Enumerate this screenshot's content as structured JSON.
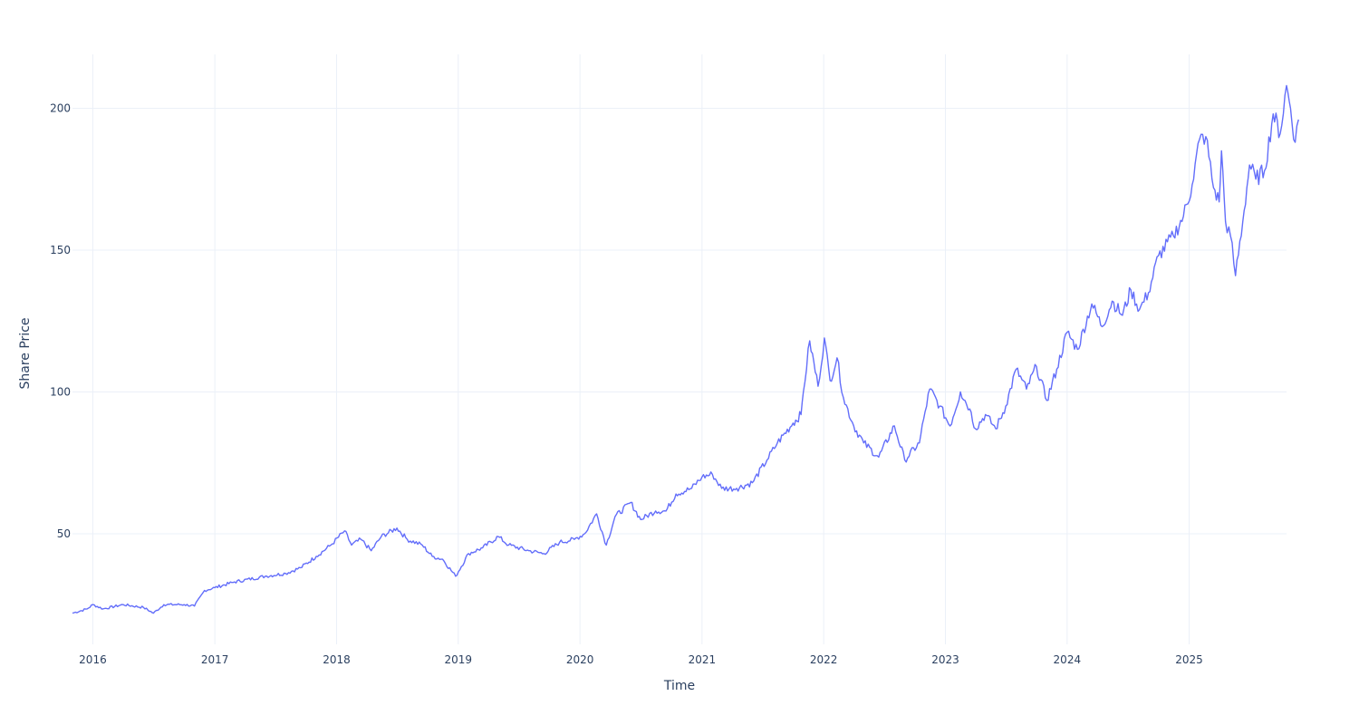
{
  "chart_data": {
    "type": "line",
    "title": "",
    "xlabel": "Time",
    "ylabel": "Share Price",
    "x_range": [
      "2015-11-01",
      "2025-10-20"
    ],
    "ylim": [
      11,
      219
    ],
    "x_ticks": [
      "2016",
      "2017",
      "2018",
      "2019",
      "2020",
      "2021",
      "2022",
      "2023",
      "2024",
      "2025"
    ],
    "y_ticks": [
      "50",
      "100",
      "150",
      "200"
    ],
    "y_tick_values": [
      50,
      100,
      150,
      200
    ],
    "grid": true,
    "legend": "none",
    "series": [
      {
        "color": "#636efa",
        "points": [
          [
            "2015-11-01",
            22
          ],
          [
            "2015-12-15",
            23.5
          ],
          [
            "2016-01-01",
            25
          ],
          [
            "2016-02-01",
            23.5
          ],
          [
            "2016-04-01",
            25
          ],
          [
            "2016-06-01",
            24
          ],
          [
            "2016-07-01",
            22
          ],
          [
            "2016-08-01",
            25
          ],
          [
            "2016-10-01",
            25
          ],
          [
            "2016-11-01",
            24.5
          ],
          [
            "2016-12-01",
            30
          ],
          [
            "2017-01-01",
            31
          ],
          [
            "2017-03-01",
            33
          ],
          [
            "2017-06-01",
            35
          ],
          [
            "2017-08-01",
            36
          ],
          [
            "2017-09-15",
            38
          ],
          [
            "2017-11-01",
            42
          ],
          [
            "2017-12-15",
            46
          ],
          [
            "2018-01-25",
            51
          ],
          [
            "2018-02-15",
            46
          ],
          [
            "2018-03-15",
            48
          ],
          [
            "2018-04-15",
            44
          ],
          [
            "2018-05-15",
            49
          ],
          [
            "2018-07-01",
            52
          ],
          [
            "2018-08-01",
            48
          ],
          [
            "2018-09-15",
            46
          ],
          [
            "2018-10-15",
            42
          ],
          [
            "2018-11-15",
            41
          ],
          [
            "2018-12-24",
            35
          ],
          [
            "2019-02-01",
            43
          ],
          [
            "2019-03-15",
            45
          ],
          [
            "2019-05-01",
            49
          ],
          [
            "2019-06-01",
            46
          ],
          [
            "2019-08-01",
            44
          ],
          [
            "2019-09-15",
            43
          ],
          [
            "2019-11-01",
            47
          ],
          [
            "2019-12-15",
            48
          ],
          [
            "2020-01-15",
            50
          ],
          [
            "2020-02-20",
            57
          ],
          [
            "2020-03-20",
            46
          ],
          [
            "2020-04-15",
            56
          ],
          [
            "2020-06-01",
            61
          ],
          [
            "2020-07-01",
            55
          ],
          [
            "2020-08-15",
            58
          ],
          [
            "2020-09-15",
            58
          ],
          [
            "2020-10-15",
            64
          ],
          [
            "2020-12-01",
            66
          ],
          [
            "2021-01-01",
            70
          ],
          [
            "2021-02-01",
            71
          ],
          [
            "2021-03-01",
            66
          ],
          [
            "2021-04-15",
            66
          ],
          [
            "2021-06-01",
            68
          ],
          [
            "2021-07-15",
            76
          ],
          [
            "2021-08-15",
            82
          ],
          [
            "2021-10-01",
            89
          ],
          [
            "2021-10-25",
            92
          ],
          [
            "2021-11-01",
            100
          ],
          [
            "2021-11-20",
            118
          ],
          [
            "2021-12-15",
            102
          ],
          [
            "2022-01-03",
            119
          ],
          [
            "2022-01-20",
            104
          ],
          [
            "2022-02-10",
            112
          ],
          [
            "2022-03-01",
            98
          ],
          [
            "2022-04-01",
            88
          ],
          [
            "2022-05-01",
            82
          ],
          [
            "2022-06-15",
            77
          ],
          [
            "2022-08-01",
            88
          ],
          [
            "2022-09-01",
            76
          ],
          [
            "2022-10-15",
            82
          ],
          [
            "2022-11-01",
            93
          ],
          [
            "2022-11-15",
            101
          ],
          [
            "2022-12-15",
            95
          ],
          [
            "2023-01-15",
            88
          ],
          [
            "2023-02-15",
            100
          ],
          [
            "2023-03-15",
            94
          ],
          [
            "2023-04-01",
            87
          ],
          [
            "2023-05-01",
            92
          ],
          [
            "2023-06-01",
            87
          ],
          [
            "2023-07-01",
            95
          ],
          [
            "2023-08-01",
            108
          ],
          [
            "2023-09-01",
            101
          ],
          [
            "2023-10-01",
            109
          ],
          [
            "2023-11-01",
            97
          ],
          [
            "2023-12-01",
            108
          ],
          [
            "2024-01-01",
            121
          ],
          [
            "2024-02-01",
            115
          ],
          [
            "2024-03-15",
            131
          ],
          [
            "2024-04-15",
            123
          ],
          [
            "2024-05-15",
            132
          ],
          [
            "2024-06-15",
            127
          ],
          [
            "2024-07-10",
            136
          ],
          [
            "2024-08-05",
            129
          ],
          [
            "2024-09-01",
            135
          ],
          [
            "2024-10-01",
            148
          ],
          [
            "2024-11-15",
            155
          ],
          [
            "2024-12-15",
            162
          ],
          [
            "2025-01-10",
            173
          ],
          [
            "2025-02-01",
            189
          ],
          [
            "2025-02-20",
            190
          ],
          [
            "2025-03-15",
            172
          ],
          [
            "2025-04-01",
            167
          ],
          [
            "2025-04-08",
            185
          ],
          [
            "2025-04-20",
            160
          ],
          [
            "2025-05-05",
            155
          ],
          [
            "2025-05-20",
            141
          ],
          [
            "2025-06-15",
            164
          ],
          [
            "2025-07-01",
            180
          ],
          [
            "2025-07-20",
            175
          ],
          [
            "2025-08-15",
            178
          ],
          [
            "2025-09-10",
            198
          ],
          [
            "2025-10-01",
            191
          ],
          [
            "2025-10-20",
            208
          ],
          [
            "2025-11-01",
            200
          ],
          [
            "2025-11-15",
            188
          ],
          [
            "2025-11-25",
            196
          ]
        ]
      }
    ]
  }
}
